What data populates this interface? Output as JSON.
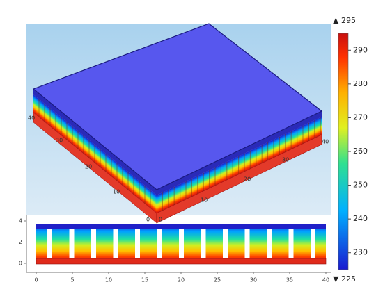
{
  "view3d": {
    "left_axis_labels": [
      "40",
      "30",
      "20",
      "10",
      "0"
    ],
    "right_axis_labels": [
      "0",
      "10",
      "20",
      "30",
      "40"
    ]
  },
  "section": {
    "xticks": [
      0,
      5,
      10,
      15,
      20,
      25,
      30,
      35,
      40
    ],
    "yticks": [
      0,
      2,
      4
    ]
  },
  "colorbar": {
    "max": 295,
    "min": 225,
    "ticks": [
      230,
      240,
      250,
      260,
      270,
      280,
      290
    ]
  }
}
